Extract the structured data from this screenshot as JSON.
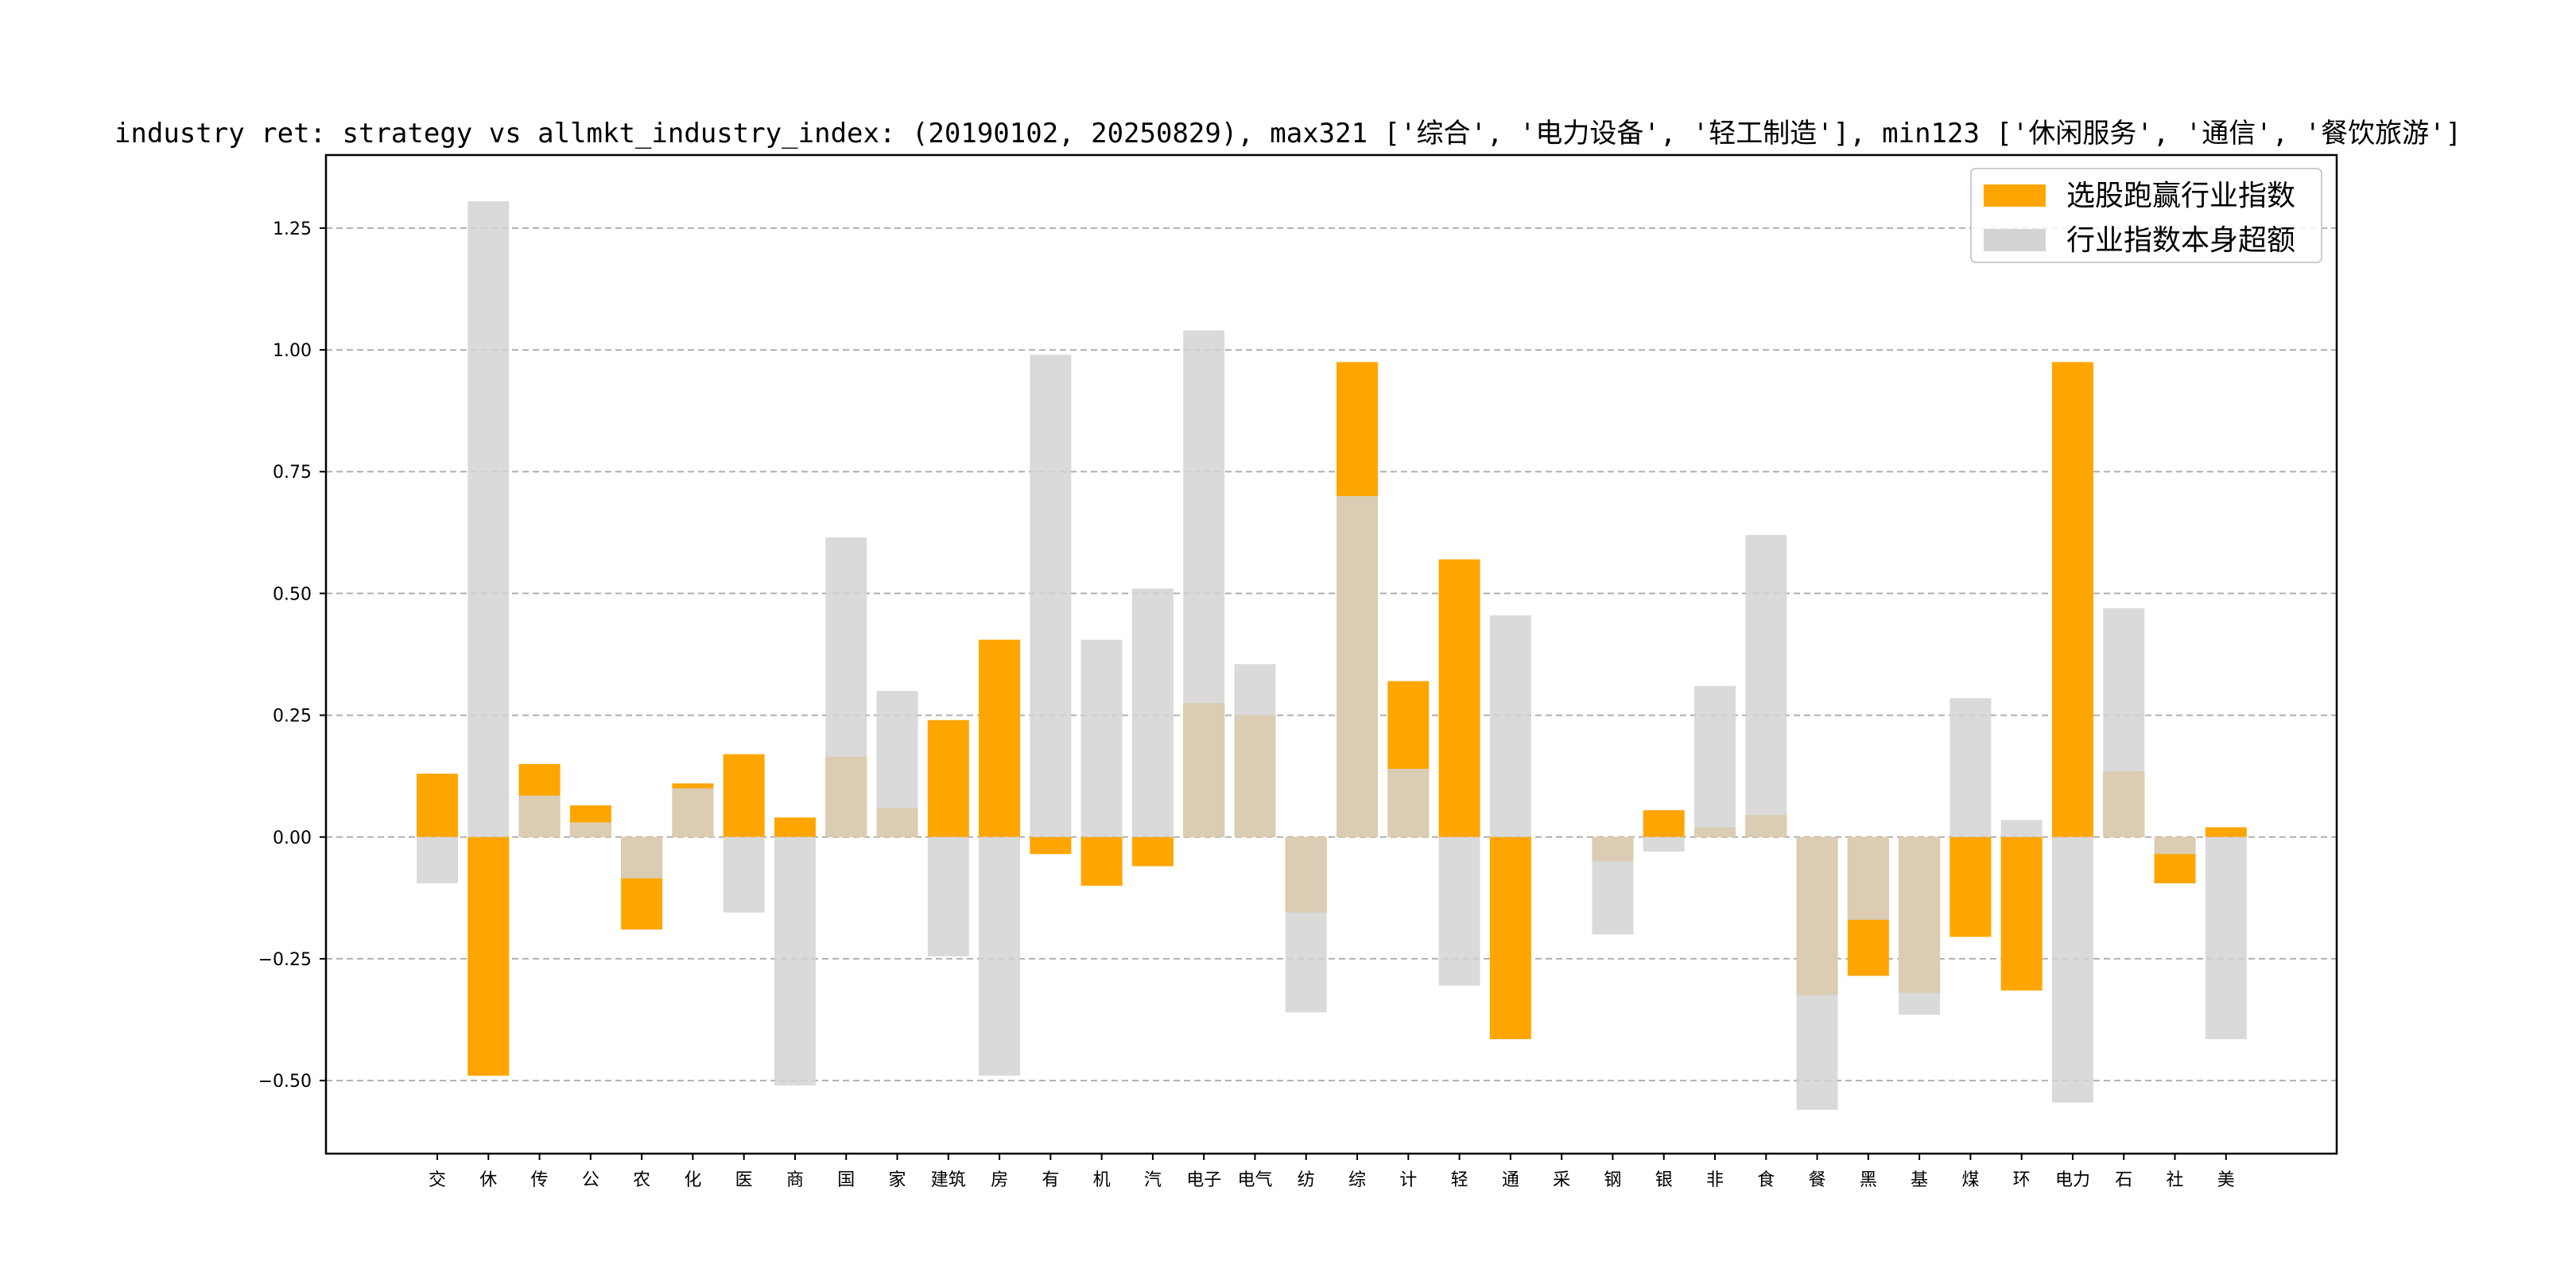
{
  "chart_data": {
    "type": "bar",
    "title": "industry ret: strategy vs allmkt_industry_index: (20190102, 20250829), max321 ['综合', '电力设备', '轻工制造'], min123 ['休闲服务', '通信', '餐饮旅游']",
    "xlabel": "",
    "ylabel": "",
    "ylim": [
      -0.65,
      1.4
    ],
    "yticks": [
      -0.5,
      -0.25,
      0.0,
      0.25,
      0.5,
      0.75,
      1.0,
      1.25
    ],
    "ytick_labels": [
      "−0.50",
      "−0.25",
      "0.00",
      "0.25",
      "0.50",
      "0.75",
      "1.00",
      "1.25"
    ],
    "grid": "y-dashed",
    "legend_position": "top-right",
    "categories": [
      "交",
      "休",
      "传",
      "公",
      "农",
      "化",
      "医",
      "商",
      "国",
      "家",
      "建筑",
      "房",
      "有",
      "机",
      "汽",
      "电子",
      "电气",
      "纺",
      "综",
      "计",
      "轻",
      "通",
      "采",
      "钢",
      "银",
      "非",
      "食",
      "餐",
      "黑",
      "基",
      "煤",
      "环",
      "电力",
      "石",
      "社",
      "美"
    ],
    "series": [
      {
        "name": "选股跑赢行业指数",
        "color": "#ffa500",
        "values": [
          0.13,
          -0.49,
          0.15,
          0.065,
          -0.19,
          0.11,
          0.17,
          0.04,
          0.165,
          0.06,
          0.24,
          0.405,
          -0.035,
          -0.1,
          -0.06,
          0.275,
          0.25,
          -0.155,
          0.975,
          0.32,
          0.57,
          -0.415,
          0.0,
          -0.05,
          0.055,
          0.02,
          0.045,
          -0.325,
          -0.285,
          -0.32,
          -0.205,
          -0.315,
          0.975,
          0.135,
          -0.095,
          0.02
        ]
      },
      {
        "name": "行业指数本身超额",
        "color": "#d3d3d3",
        "values": [
          -0.095,
          1.305,
          0.085,
          0.03,
          -0.085,
          0.1,
          -0.155,
          -0.51,
          0.615,
          0.3,
          -0.245,
          -0.49,
          0.99,
          0.405,
          0.51,
          1.04,
          0.355,
          -0.36,
          0.7,
          0.14,
          -0.305,
          0.455,
          0.0,
          -0.2,
          -0.03,
          0.31,
          0.62,
          -0.56,
          -0.17,
          -0.365,
          0.285,
          0.035,
          -0.545,
          0.47,
          -0.035,
          -0.415
        ]
      }
    ]
  }
}
